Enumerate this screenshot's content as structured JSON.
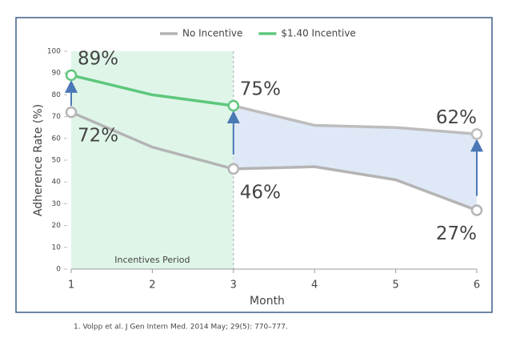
{
  "chart_data": {
    "type": "line",
    "x": [
      1,
      2,
      3,
      4,
      5,
      6
    ],
    "xlim": [
      1,
      6
    ],
    "xticks": [
      1,
      2,
      3,
      4,
      5,
      6
    ],
    "ylim": [
      0,
      100
    ],
    "yticks": [
      0,
      10,
      20,
      30,
      40,
      50,
      60,
      70,
      80,
      90,
      100
    ],
    "x_label": "Month",
    "y_label": "Adherence Rate (%)",
    "series": [
      {
        "name": "No Incentive",
        "color": "#b4b4b4",
        "label_color": "#6b6b6b",
        "values": [
          72,
          56,
          46,
          47,
          41,
          27
        ],
        "value_labels": [
          "72%",
          null,
          "46%",
          null,
          null,
          "27%"
        ]
      },
      {
        "name": "$1.40 Incentive",
        "color": "#5ec77c",
        "label_color": "#5ec77c",
        "values": [
          89,
          80,
          75,
          null,
          null,
          null
        ],
        "value_labels": [
          "89%",
          null,
          "75%",
          null,
          null,
          null
        ]
      },
      {
        "color": "#bdbdbd",
        "label_color": "#6b6b6b",
        "values": [
          null,
          null,
          75,
          66,
          65,
          62
        ],
        "value_labels": [
          null,
          null,
          null,
          null,
          null,
          "62%"
        ]
      }
    ],
    "shaded_region": {
      "label": "Incentives Period",
      "x": [
        1,
        3
      ],
      "color": "#dff5e8"
    },
    "fill_between": {
      "series": [
        0,
        2
      ],
      "color": "#dfe8f6"
    },
    "arrows": {
      "x": [
        1,
        3,
        6
      ],
      "color": "#4a78b5"
    },
    "legend": "top"
  },
  "footnote": "1.   Volpp et al. J Gen Intern Med. 2014 May; 29(5): 770–777."
}
